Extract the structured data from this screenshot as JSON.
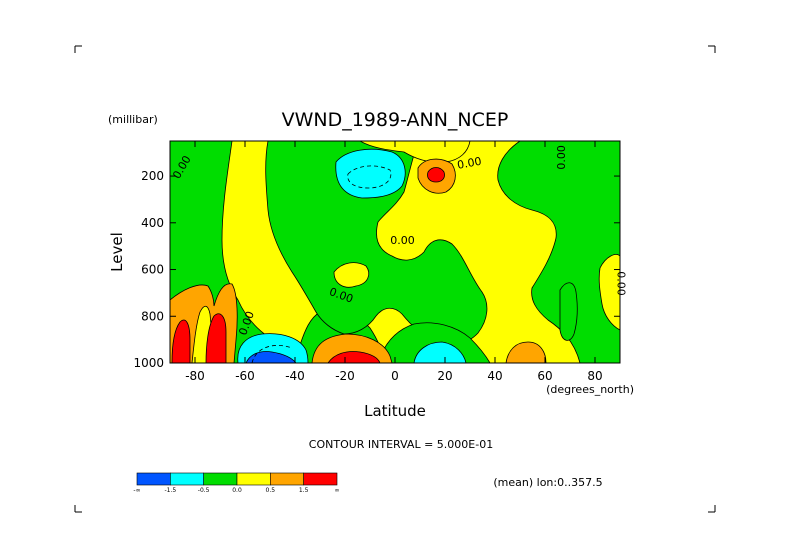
{
  "chart_data": {
    "type": "contour",
    "title": "VWND_1989-ANN_NCEP",
    "xlabel": "Latitude",
    "x_unit": "(degrees_north)",
    "ylabel": "Level",
    "y_unit": "(millibar)",
    "xlim": [
      -90,
      90
    ],
    "ylim": [
      1000,
      50
    ],
    "y_reversed": true,
    "x_ticks": [
      -80,
      -60,
      -40,
      -20,
      0,
      20,
      40,
      60,
      80
    ],
    "y_ticks": [
      200,
      400,
      600,
      800,
      1000
    ],
    "contour_interval_text": "CONTOUR INTERVAL = 5.000E-01",
    "subset_text": "(mean) lon:0..357.5",
    "contour_labels": [
      {
        "text": "0.00",
        "x": -84,
        "y": 170,
        "rotate": -60
      },
      {
        "text": "0.00",
        "x": 30,
        "y": 160,
        "rotate": -10
      },
      {
        "text": "0.00",
        "x": 68,
        "y": 120,
        "rotate": -90
      },
      {
        "text": "0.00",
        "x": 3,
        "y": 490,
        "rotate": 0
      },
      {
        "text": "0.00",
        "x": -22,
        "y": 725,
        "rotate": 20
      },
      {
        "text": "0.00",
        "x": -58,
        "y": 835,
        "rotate": -70
      },
      {
        "text": "0.00",
        "x": 89,
        "y": 660,
        "rotate": 90
      }
    ],
    "colorbar": {
      "levels": [
        "-∞",
        "-1.5",
        "-0.5",
        "0.0",
        "0.5",
        "1.5",
        "∞"
      ],
      "colors": [
        "#0055ff",
        "#00ffff",
        "#00dd00",
        "#ffff00",
        "#ffa500",
        "#ff0000"
      ]
    },
    "colors": {
      "strong_negative": "#0055ff",
      "negative": "#00ffff",
      "weak_negative": "#00dd00",
      "weak_positive": "#ffff00",
      "positive": "#ffa500",
      "strong_positive": "#ff0000"
    }
  }
}
